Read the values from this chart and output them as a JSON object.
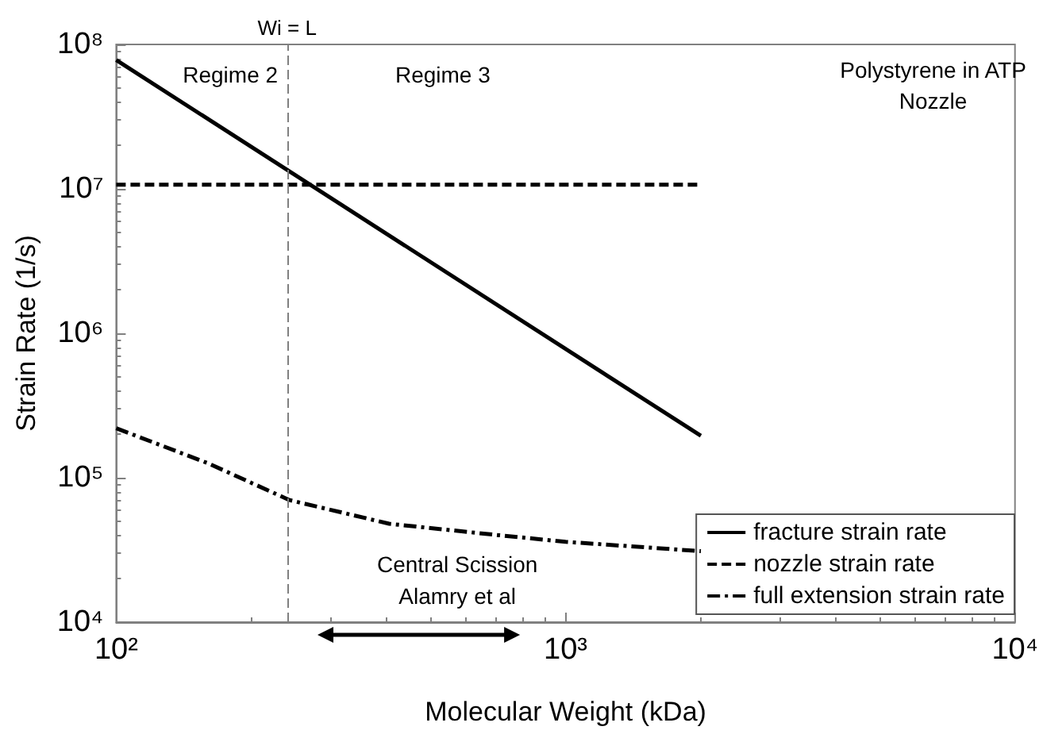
{
  "chart_data": {
    "type": "line",
    "xlabel": "Molecular Weight (kDa)",
    "ylabel": "Strain Rate (1/s)",
    "log": "xy",
    "grid": false,
    "legend": "bottom right",
    "marker": "none",
    "xlim": [
      100,
      10000
    ],
    "xticks": [
      {
        "value": 100,
        "label": "10²"
      },
      {
        "value": 1000,
        "label": "10³"
      },
      {
        "value": 10000,
        "label": "10⁴"
      }
    ],
    "ylim": [
      10000,
      100000000
    ],
    "yticks": [
      {
        "value": 10000,
        "label": "10⁴"
      },
      {
        "value": 100000,
        "label": "10⁵"
      },
      {
        "value": 1000000,
        "label": "10⁶"
      },
      {
        "value": 10000000,
        "label": "10⁷"
      },
      {
        "value": 100000000,
        "label": "10⁸"
      }
    ],
    "series": [
      {
        "name": "fracture strain rate",
        "color": "#000000",
        "line_style": "solid",
        "x": [
          100,
          2000
        ],
        "values": [
          78000000,
          195000
        ]
      },
      {
        "name": "nozzle strain rate",
        "color": "#000000",
        "line_style": "dashed",
        "x": [
          100,
          2000
        ],
        "values": [
          10700000,
          10700000
        ]
      },
      {
        "name": "full extension strain rate",
        "color": "#000000",
        "line_style": "dashdot",
        "x": [
          100,
          160,
          243,
          405,
          710,
          1000,
          2000
        ],
        "values": [
          220000,
          126000,
          70000,
          48000,
          40000,
          36000,
          31000
        ]
      }
    ],
    "ref_lines": [
      {
        "axis": "x",
        "value": 240,
        "label": "Wi = L",
        "color": "#808080",
        "line_style": "dashed"
      }
    ],
    "annotations": [
      "Regime 2",
      "Regime 3",
      "Polystyrene in ATP",
      "Nozzle",
      "Central Scission",
      "Alamry et al"
    ]
  }
}
